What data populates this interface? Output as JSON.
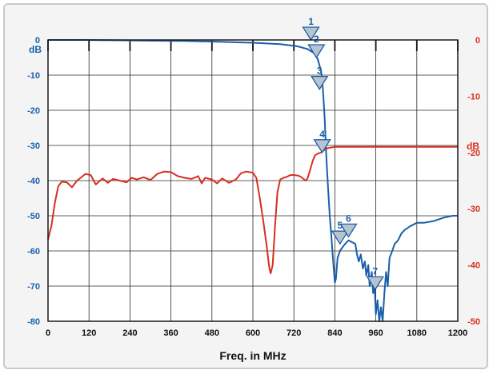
{
  "chart_data": {
    "type": "line",
    "title": "",
    "xlabel": "Freq. in MHz",
    "xlim": [
      0,
      1200
    ],
    "x_ticks": [
      "0",
      "120",
      "240",
      "360",
      "480",
      "600",
      "720",
      "840",
      "960",
      "1080",
      "1200"
    ],
    "y_left": {
      "unit": "dB",
      "ylim": [
        -80,
        0
      ],
      "ticks": [
        "0",
        "-10",
        "-20",
        "-30",
        "-40",
        "-50",
        "-60",
        "-70",
        "-80"
      ]
    },
    "y_right": {
      "unit": "dB",
      "ylim": [
        -50,
        0
      ],
      "ticks": [
        "0",
        "-10",
        "-20",
        "-30",
        "-40",
        "-50"
      ]
    },
    "grid": true,
    "series": [
      {
        "axis": "left",
        "color": "#1a5fa8",
        "points": [
          [
            0,
            0
          ],
          [
            100,
            0
          ],
          [
            200,
            -0.1
          ],
          [
            300,
            -0.2
          ],
          [
            400,
            -0.3
          ],
          [
            500,
            -0.5
          ],
          [
            600,
            -0.8
          ],
          [
            680,
            -1.2
          ],
          [
            730,
            -1.8
          ],
          [
            760,
            -2.6
          ],
          [
            780,
            -3.8
          ],
          [
            790,
            -5.5
          ],
          [
            800,
            -9
          ],
          [
            805,
            -14
          ],
          [
            810,
            -22
          ],
          [
            815,
            -33
          ],
          [
            820,
            -42
          ],
          [
            825,
            -50
          ],
          [
            830,
            -56
          ],
          [
            835,
            -63
          ],
          [
            840,
            -69
          ],
          [
            843,
            -68
          ],
          [
            848,
            -62
          ],
          [
            855,
            -60
          ],
          [
            862,
            -59
          ],
          [
            870,
            -58
          ],
          [
            880,
            -57
          ],
          [
            890,
            -57.5
          ],
          [
            900,
            -58
          ],
          [
            905,
            -61
          ],
          [
            910,
            -63
          ],
          [
            916,
            -61
          ],
          [
            922,
            -65
          ],
          [
            928,
            -63
          ],
          [
            932,
            -67
          ],
          [
            938,
            -64
          ],
          [
            942,
            -70
          ],
          [
            948,
            -66
          ],
          [
            952,
            -72
          ],
          [
            956,
            -69
          ],
          [
            960,
            -78
          ],
          [
            965,
            -74
          ],
          [
            970,
            -80
          ],
          [
            975,
            -76
          ],
          [
            980,
            -80
          ],
          [
            985,
            -72
          ],
          [
            990,
            -66
          ],
          [
            995,
            -70
          ],
          [
            1000,
            -62
          ],
          [
            1008,
            -60
          ],
          [
            1015,
            -58
          ],
          [
            1025,
            -57
          ],
          [
            1035,
            -55
          ],
          [
            1045,
            -54
          ],
          [
            1060,
            -53
          ],
          [
            1080,
            -52
          ],
          [
            1100,
            -52
          ],
          [
            1130,
            -51.5
          ],
          [
            1160,
            -50.5
          ],
          [
            1185,
            -50
          ],
          [
            1200,
            -50
          ]
        ]
      },
      {
        "axis": "right",
        "color": "#d6301f",
        "points": [
          [
            0,
            -35.5
          ],
          [
            10,
            -33
          ],
          [
            20,
            -29
          ],
          [
            30,
            -26
          ],
          [
            40,
            -25.2
          ],
          [
            55,
            -25.3
          ],
          [
            70,
            -26.2
          ],
          [
            85,
            -25
          ],
          [
            110,
            -23.8
          ],
          [
            125,
            -24
          ],
          [
            140,
            -25.7
          ],
          [
            160,
            -24.6
          ],
          [
            175,
            -25.4
          ],
          [
            190,
            -24.7
          ],
          [
            210,
            -25
          ],
          [
            230,
            -25.3
          ],
          [
            245,
            -24.5
          ],
          [
            260,
            -24.8
          ],
          [
            280,
            -24.4
          ],
          [
            300,
            -24.9
          ],
          [
            320,
            -23.8
          ],
          [
            340,
            -23.4
          ],
          [
            360,
            -23.5
          ],
          [
            380,
            -24.2
          ],
          [
            400,
            -24.5
          ],
          [
            420,
            -24.7
          ],
          [
            440,
            -24.2
          ],
          [
            450,
            -25.5
          ],
          [
            460,
            -24.5
          ],
          [
            480,
            -24.8
          ],
          [
            495,
            -25.5
          ],
          [
            510,
            -24.6
          ],
          [
            530,
            -25.4
          ],
          [
            550,
            -24.8
          ],
          [
            565,
            -23.7
          ],
          [
            580,
            -23.4
          ],
          [
            600,
            -23.6
          ],
          [
            610,
            -24.5
          ],
          [
            620,
            -28
          ],
          [
            630,
            -32
          ],
          [
            640,
            -36.5
          ],
          [
            648,
            -40.5
          ],
          [
            652,
            -41.5
          ],
          [
            658,
            -40
          ],
          [
            665,
            -33
          ],
          [
            672,
            -27
          ],
          [
            680,
            -24.8
          ],
          [
            690,
            -24.5
          ],
          [
            700,
            -24.3
          ],
          [
            710,
            -24
          ],
          [
            720,
            -24
          ],
          [
            732,
            -24.1
          ],
          [
            740,
            -24.3
          ],
          [
            748,
            -24.7
          ],
          [
            755,
            -25
          ],
          [
            760,
            -24.6
          ],
          [
            768,
            -23
          ],
          [
            775,
            -21.5
          ],
          [
            782,
            -20.5
          ],
          [
            790,
            -20.2
          ],
          [
            800,
            -20
          ],
          [
            810,
            -19.5
          ],
          [
            820,
            -19.2
          ],
          [
            830,
            -19.1
          ],
          [
            840,
            -19
          ],
          [
            860,
            -19
          ],
          [
            900,
            -19
          ],
          [
            1000,
            -19
          ],
          [
            1100,
            -19
          ],
          [
            1200,
            -19
          ]
        ]
      }
    ],
    "markers": [
      {
        "label": "1",
        "x": 770,
        "y": 0
      },
      {
        "label": "2",
        "x": 786,
        "y": -5
      },
      {
        "label": "3",
        "x": 795,
        "y": -14
      },
      {
        "label": "4",
        "x": 803,
        "y": -32
      },
      {
        "label": "5",
        "x": 855,
        "y": -58
      },
      {
        "label": "6",
        "x": 880,
        "y": -56
      },
      {
        "label": "7",
        "x": 958,
        "y": -71
      }
    ]
  }
}
